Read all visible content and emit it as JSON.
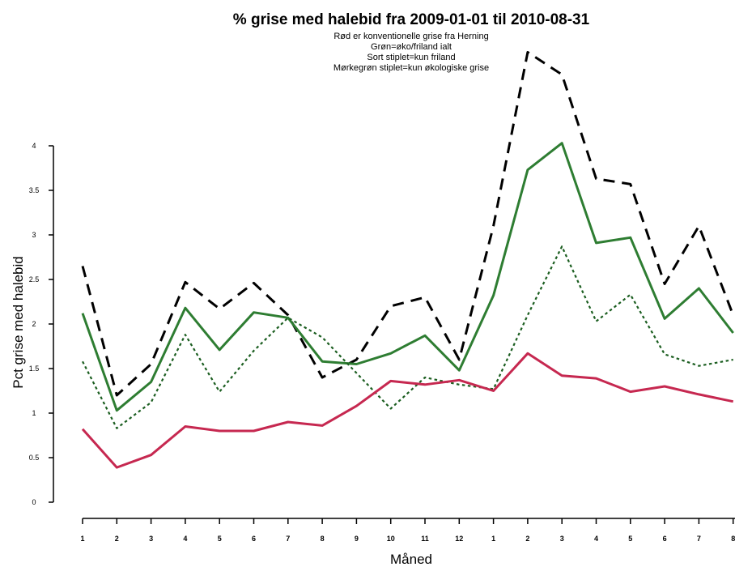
{
  "chart_data": {
    "type": "line",
    "title": "% grise med halebid fra 2009-01-01 til 2010-08-31",
    "subtitle_lines": [
      "Rød er konventionelle grise fra Herning",
      "Grøn=øko/friland ialt",
      "Sort stiplet=kun friland",
      "Mørkegrøn stiplet=kun økologiske grise"
    ],
    "xlabel": "Måned",
    "ylabel": "Pct grise med halebid",
    "categories": [
      "1",
      "2",
      "3",
      "4",
      "5",
      "6",
      "7",
      "8",
      "9",
      "10",
      "11",
      "12",
      "1",
      "2",
      "3",
      "4",
      "5",
      "6",
      "7",
      "8"
    ],
    "yticks": [
      "0",
      "0.5",
      "1",
      "1.5",
      "2",
      "2.5",
      "3",
      "3.5",
      "4"
    ],
    "ylim": [
      0,
      4
    ],
    "series": [
      {
        "color": "#000000",
        "dash": "long",
        "values": [
          2.65,
          1.2,
          1.55,
          2.47,
          2.17,
          2.46,
          2.1,
          1.4,
          1.6,
          2.2,
          2.3,
          1.6,
          3.1,
          5.05,
          4.8,
          3.63,
          3.57,
          2.45,
          3.1,
          2.1
        ]
      },
      {
        "color": "#2e7d32",
        "dash": "solid",
        "values": [
          2.12,
          1.03,
          1.35,
          2.18,
          1.71,
          2.13,
          2.07,
          1.58,
          1.55,
          1.67,
          1.87,
          1.48,
          2.32,
          3.73,
          4.03,
          2.91,
          2.97,
          2.06,
          2.4,
          1.9
        ]
      },
      {
        "color": "#1b5e20",
        "dash": "dotted",
        "values": [
          1.58,
          0.83,
          1.12,
          1.88,
          1.24,
          1.7,
          2.07,
          1.85,
          1.45,
          1.05,
          1.4,
          1.32,
          1.27,
          2.1,
          2.87,
          2.03,
          2.33,
          1.66,
          1.53,
          1.6
        ]
      },
      {
        "color": "#c62850",
        "dash": "solid",
        "values": [
          0.82,
          0.39,
          0.53,
          0.85,
          0.8,
          0.8,
          0.9,
          0.86,
          1.08,
          1.36,
          1.32,
          1.37,
          1.25,
          1.67,
          1.42,
          1.39,
          1.24,
          1.3,
          1.21,
          1.13
        ]
      }
    ]
  }
}
